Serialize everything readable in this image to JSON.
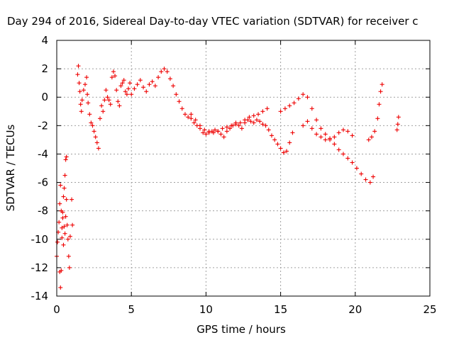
{
  "chart_data": {
    "type": "scatter",
    "title": "Day 294 of 2016, Sidereal Day-to-day VTEC variation (SDTVAR) for receiver c",
    "xlabel": "GPS time / hours",
    "ylabel": "SDTVAR / TECUs",
    "xlim": [
      0,
      25
    ],
    "ylim": [
      -14,
      4
    ],
    "xticks": [
      "0",
      "5",
      "10",
      "15",
      "20",
      "25"
    ],
    "yticks": [
      "-14",
      "-12",
      "-10",
      "-8",
      "-6",
      "-4",
      "-2",
      "0",
      "2",
      "4"
    ],
    "xtick_values": [
      0,
      5,
      10,
      15,
      20,
      25
    ],
    "ytick_values": [
      -14,
      -12,
      -10,
      -8,
      -6,
      -4,
      -2,
      0,
      2,
      4
    ],
    "grid": true,
    "marker": "+",
    "color": "#ee0000",
    "series": [
      {
        "name": "receiver c",
        "x": [
          0.0,
          0.05,
          0.1,
          0.15,
          0.2,
          0.25,
          0.3,
          0.35,
          0.4,
          0.45,
          0.5,
          0.55,
          0.6,
          0.65,
          0.7,
          0.75,
          0.8,
          0.85,
          0.9,
          1.0,
          1.05,
          0.2,
          0.25,
          0.3,
          0.35,
          0.4,
          0.45,
          0.5,
          0.55,
          0.6,
          0.65,
          1.4,
          1.45,
          1.5,
          1.55,
          1.6,
          1.65,
          1.7,
          1.8,
          1.9,
          2.0,
          2.05,
          2.1,
          2.2,
          2.3,
          2.4,
          2.5,
          2.6,
          2.7,
          2.8,
          2.9,
          3.0,
          3.1,
          3.2,
          3.3,
          3.4,
          3.5,
          3.6,
          3.7,
          3.8,
          3.9,
          4.0,
          4.1,
          4.2,
          4.3,
          4.4,
          4.5,
          4.6,
          4.7,
          4.8,
          4.9,
          5.0,
          5.2,
          5.4,
          5.6,
          5.8,
          6.0,
          6.2,
          6.4,
          6.6,
          6.8,
          7.0,
          7.2,
          7.4,
          7.6,
          7.8,
          8.0,
          8.2,
          8.4,
          8.6,
          8.8,
          9.0,
          9.2,
          9.4,
          9.6,
          9.8,
          10.0,
          10.2,
          10.4,
          10.6,
          10.8,
          11.0,
          11.2,
          11.4,
          11.6,
          11.8,
          12.0,
          12.2,
          12.4,
          12.6,
          12.8,
          13.0,
          13.2,
          13.4,
          13.6,
          13.8,
          14.0,
          14.2,
          14.4,
          14.6,
          14.8,
          15.0,
          15.2,
          15.4,
          15.6,
          15.8,
          9.0,
          9.3,
          9.6,
          9.9,
          10.2,
          10.5,
          10.8,
          11.1,
          11.4,
          11.7,
          12.0,
          12.3,
          12.6,
          12.9,
          13.2,
          13.5,
          13.8,
          14.1,
          15.0,
          15.3,
          15.6,
          15.9,
          16.2,
          16.5,
          16.8,
          17.1,
          17.4,
          17.7,
          18.0,
          18.3,
          18.6,
          18.9,
          19.2,
          19.5,
          19.8,
          20.1,
          20.4,
          20.7,
          21.0,
          21.2,
          16.5,
          16.8,
          17.1,
          17.4,
          17.7,
          18.0,
          18.3,
          18.6,
          18.9,
          19.2,
          19.5,
          19.8,
          20.9,
          21.1,
          21.3,
          21.5,
          21.6,
          21.7,
          21.8,
          22.8,
          22.85,
          22.9
        ],
        "y": [
          -11.2,
          -10.2,
          -9.5,
          -8.8,
          -7.5,
          -6.2,
          -8.0,
          -9.2,
          -8.5,
          -10.4,
          -9.1,
          -9.6,
          -8.4,
          -7.2,
          -9.0,
          -10.0,
          -11.2,
          -12.0,
          -9.8,
          -7.2,
          -9.0,
          -12.3,
          -13.4,
          -12.2,
          -9.9,
          -8.1,
          -7.0,
          -6.4,
          -5.5,
          -4.4,
          -4.2,
          1.6,
          2.2,
          1.0,
          0.4,
          -0.5,
          -1.0,
          -0.2,
          0.5,
          0.9,
          1.4,
          0.2,
          -0.4,
          -1.2,
          -1.8,
          -2.0,
          -2.4,
          -2.8,
          -3.2,
          -3.6,
          -1.5,
          -0.6,
          -1.0,
          -0.2,
          0.5,
          0.0,
          -0.2,
          -0.5,
          1.4,
          1.8,
          1.5,
          0.5,
          -0.3,
          -0.6,
          0.8,
          1.0,
          1.2,
          0.4,
          0.2,
          0.6,
          1.0,
          0.2,
          0.6,
          0.9,
          1.2,
          0.7,
          0.4,
          0.9,
          1.1,
          0.8,
          1.4,
          1.8,
          2.0,
          1.8,
          1.3,
          0.8,
          0.2,
          -0.3,
          -0.8,
          -1.2,
          -1.4,
          -1.5,
          -1.8,
          -2.0,
          -2.2,
          -2.5,
          -2.6,
          -2.5,
          -2.4,
          -2.3,
          -2.4,
          -2.6,
          -2.8,
          -2.4,
          -2.2,
          -2.0,
          -1.8,
          -2.0,
          -2.2,
          -1.8,
          -1.6,
          -1.7,
          -1.8,
          -1.6,
          -1.7,
          -1.9,
          -2.0,
          -2.3,
          -2.7,
          -3.0,
          -3.3,
          -3.6,
          -3.9,
          -3.8,
          -3.2,
          -2.5,
          -1.2,
          -1.6,
          -2.0,
          -2.3,
          -2.4,
          -2.5,
          -2.4,
          -2.2,
          -2.1,
          -2.0,
          -1.9,
          -1.8,
          -1.6,
          -1.4,
          -1.3,
          -1.2,
          -1.0,
          -0.8,
          -1.0,
          -0.8,
          -0.6,
          -0.4,
          -0.1,
          0.2,
          0.0,
          -0.8,
          -1.6,
          -2.2,
          -2.6,
          -3.0,
          -3.3,
          -3.7,
          -4.0,
          -4.3,
          -4.6,
          -5.0,
          -5.4,
          -5.8,
          -6.0,
          -5.6,
          -2.0,
          -1.7,
          -2.2,
          -2.6,
          -2.8,
          -3.0,
          -2.9,
          -2.8,
          -2.5,
          -2.3,
          -2.4,
          -2.7,
          -3.0,
          -2.8,
          -2.4,
          -1.5,
          -0.5,
          0.4,
          0.9,
          -2.3,
          -1.9,
          -1.4
        ]
      }
    ]
  }
}
